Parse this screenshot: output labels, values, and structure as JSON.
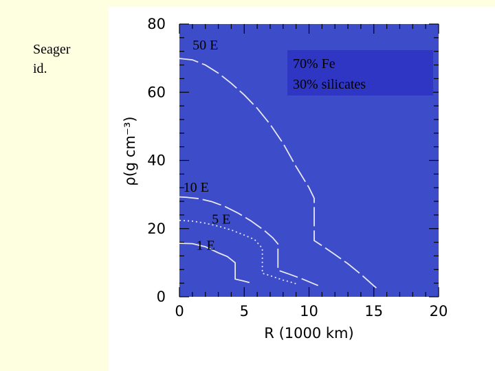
{
  "side_note": {
    "line1": "Seager",
    "line2": "id."
  },
  "colors": {
    "page_background": "#fefee0",
    "figure_background": "#ffffff",
    "plot_background": "#3d4cc8",
    "curve_color": "#e8e8f4",
    "legend_box": "#2f36c4",
    "axis_text": "#000000"
  },
  "chart_data": {
    "type": "line",
    "title": "",
    "xlabel": "R (1000 km)",
    "ylabel": "ρ(g cm⁻³)",
    "xlim": [
      0,
      20
    ],
    "ylim": [
      0,
      80
    ],
    "x_ticks": [
      "0",
      "5",
      "10",
      "15",
      "20"
    ],
    "y_ticks": [
      "0",
      "20",
      "40",
      "60",
      "80"
    ],
    "grid": false,
    "legend_box_text": [
      "70% Fe",
      "30% silicates"
    ],
    "series": [
      {
        "name": "50 E",
        "dash": "long",
        "points": [
          [
            0.0,
            69.9
          ],
          [
            1.0,
            69.5
          ],
          [
            2.0,
            68.0
          ],
          [
            3.0,
            65.6
          ],
          [
            4.0,
            62.6
          ],
          [
            5.0,
            59.2
          ],
          [
            6.0,
            55.3
          ],
          [
            7.0,
            50.6
          ],
          [
            8.0,
            45.0
          ],
          [
            9.0,
            38.2
          ],
          [
            10.0,
            32.0
          ],
          [
            10.4,
            28.9
          ],
          [
            10.4,
            16.5
          ],
          [
            11.0,
            15.0
          ],
          [
            12.0,
            12.4
          ],
          [
            13.0,
            9.7
          ],
          [
            14.0,
            6.6
          ],
          [
            15.0,
            3.2
          ],
          [
            15.2,
            2.6
          ]
        ]
      },
      {
        "name": "10 E",
        "dash": "long",
        "points": [
          [
            0.0,
            29.3
          ],
          [
            0.5,
            29.2
          ],
          [
            1.5,
            28.8
          ],
          [
            2.5,
            27.9
          ],
          [
            3.5,
            26.5
          ],
          [
            4.5,
            24.6
          ],
          [
            5.5,
            22.3
          ],
          [
            6.5,
            19.6
          ],
          [
            7.2,
            17.3
          ],
          [
            7.6,
            15.5
          ],
          [
            7.6,
            7.8
          ],
          [
            8.5,
            6.6
          ],
          [
            9.5,
            5.2
          ],
          [
            10.5,
            3.6
          ],
          [
            10.7,
            3.3
          ]
        ]
      },
      {
        "name": "5 E",
        "dash": "dot",
        "points": [
          [
            0.0,
            22.4
          ],
          [
            1.0,
            22.2
          ],
          [
            2.0,
            21.6
          ],
          [
            3.0,
            20.7
          ],
          [
            4.0,
            19.6
          ],
          [
            5.0,
            18.1
          ],
          [
            5.8,
            16.8
          ],
          [
            6.3,
            14.6
          ],
          [
            6.4,
            14.1
          ],
          [
            6.4,
            6.9
          ],
          [
            7.0,
            6.2
          ],
          [
            8.0,
            4.9
          ],
          [
            8.7,
            4.2
          ],
          [
            9.1,
            3.7
          ]
        ]
      },
      {
        "name": "1 E",
        "dash": "solid",
        "points": [
          [
            0.0,
            15.7
          ],
          [
            1.0,
            15.6
          ],
          [
            2.0,
            14.7
          ],
          [
            3.0,
            12.9
          ],
          [
            3.7,
            11.8
          ],
          [
            4.3,
            10.0
          ],
          [
            4.3,
            5.2
          ],
          [
            5.0,
            4.6
          ],
          [
            5.4,
            4.2
          ]
        ]
      }
    ]
  }
}
